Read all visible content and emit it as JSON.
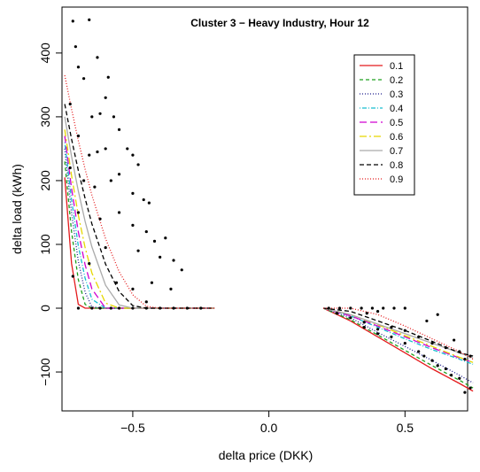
{
  "chart_data": {
    "type": "line",
    "title": "Cluster 3 − Heavy Industry, Hour 12",
    "x_label": "delta price (DKK)",
    "y_label": "delta load (kWh)",
    "xlim": [
      -0.76,
      0.73
    ],
    "ylim": [
      -161,
      472
    ],
    "xticks": [
      {
        "value": -0.5,
        "label": "−0.5"
      },
      {
        "value": 0,
        "label": "0.0"
      },
      0.5
    ],
    "yticks": [
      {
        "value": -100,
        "label": "−100"
      },
      0,
      100,
      200,
      300,
      400
    ],
    "legend": "topright",
    "x": [
      -0.75,
      -0.725,
      -0.7,
      -0.675,
      -0.65,
      -0.6,
      -0.55,
      -0.5,
      -0.45,
      -0.4,
      -0.2,
      null,
      0.2,
      0.3,
      0.4,
      0.5,
      0.6,
      0.7,
      0.75
    ],
    "series": [
      {
        "name": "0.1",
        "color": "#e41a1c",
        "dash": "none",
        "values": [
          205,
          70,
          6,
          0,
          0,
          0,
          0,
          0,
          0,
          0,
          0,
          null,
          0,
          -20,
          -45,
          -70,
          -95,
          -118,
          -130
        ]
      },
      {
        "name": "0.2",
        "color": "#1ea01e",
        "dash": "4 3",
        "values": [
          230,
          120,
          45,
          6,
          0,
          0,
          0,
          0,
          0,
          0,
          0,
          null,
          0,
          -18,
          -42,
          -66,
          -90,
          -113,
          -125
        ]
      },
      {
        "name": "0.3",
        "color": "#1a1a8c",
        "dash": "1 2",
        "values": [
          250,
          149,
          74,
          25,
          2,
          0,
          0,
          0,
          0,
          0,
          0,
          null,
          0,
          -15,
          -38,
          -60,
          -82,
          -105,
          -117
        ]
      },
      {
        "name": "0.4",
        "color": "#17becf",
        "dash": "1 2 5 2",
        "values": [
          260,
          170,
          98,
          47,
          14,
          0,
          0,
          0,
          0,
          0,
          0,
          null,
          0,
          -12,
          -30,
          -48,
          -65,
          -80,
          -88
        ]
      },
      {
        "name": "0.5",
        "color": "#d000d0",
        "dash": "8 4",
        "values": [
          270,
          188,
          120,
          68,
          30,
          0,
          0,
          0,
          0,
          0,
          0,
          null,
          0,
          -12,
          -28,
          -45,
          -62,
          -78,
          -85
        ]
      },
      {
        "name": "0.6",
        "color": "#e6d800",
        "dash": "8 3 2 3",
        "values": [
          280,
          208,
          146,
          95,
          55,
          8,
          0,
          0,
          0,
          0,
          0,
          null,
          0,
          -10,
          -26,
          -43,
          -60,
          -77,
          -85
        ]
      },
      {
        "name": "0.7",
        "color": "#aaaaaa",
        "dash": "none",
        "values": [
          300,
          238,
          184,
          136,
          96,
          36,
          5,
          0,
          0,
          0,
          0,
          null,
          0,
          -10,
          -25,
          -40,
          -55,
          -70,
          -78
        ]
      },
      {
        "name": "0.8",
        "color": "#000000",
        "dash": "5 3",
        "values": [
          320,
          265,
          216,
          172,
          132,
          69,
          26,
          4,
          0,
          0,
          0,
          null,
          0,
          -5,
          -20,
          -35,
          -52,
          -70,
          -75
        ]
      },
      {
        "name": "0.9",
        "color": "#e41a1c",
        "dash": "1 2",
        "values": [
          365,
          312,
          263,
          218,
          177,
          109,
          57,
          21,
          3,
          0,
          0,
          null,
          0,
          0,
          -10,
          -28,
          -48,
          -68,
          -80
        ]
      }
    ],
    "scatter": {
      "color": "#000000",
      "x": [
        -0.72,
        -0.66,
        -0.71,
        -0.63,
        -0.7,
        -0.68,
        -0.59,
        -0.6,
        -0.73,
        -0.65,
        -0.62,
        -0.57,
        -0.55,
        -0.7,
        -0.66,
        -0.63,
        -0.6,
        -0.52,
        -0.5,
        -0.48,
        -0.73,
        -0.68,
        -0.64,
        -0.58,
        -0.55,
        -0.5,
        -0.46,
        -0.44,
        -0.7,
        -0.62,
        -0.55,
        -0.5,
        -0.45,
        -0.42,
        -0.38,
        -0.35,
        -0.32,
        -0.4,
        -0.48,
        -0.6,
        -0.66,
        -0.72,
        -0.56,
        -0.43,
        -0.5,
        -0.36,
        -0.45,
        -0.7,
        -0.65,
        -0.62,
        -0.58,
        -0.55,
        -0.5,
        -0.45,
        -0.4,
        -0.35,
        -0.3,
        -0.25,
        0.22,
        0.26,
        0.3,
        0.34,
        0.38,
        0.42,
        0.46,
        0.5,
        0.36,
        0.4,
        0.25,
        0.3,
        0.35,
        0.4,
        0.45,
        0.5,
        0.55,
        0.6,
        0.65,
        0.7,
        0.74,
        0.72,
        0.67,
        0.62,
        0.57,
        0.5,
        0.55,
        0.6,
        0.65,
        0.7,
        0.74,
        0.45,
        0.62,
        0.58,
        0.68,
        0.72,
        0.35,
        0.4
      ],
      "y": [
        450,
        452,
        410,
        393,
        378,
        360,
        362,
        330,
        320,
        300,
        305,
        300,
        280,
        270,
        240,
        245,
        250,
        250,
        240,
        225,
        220,
        200,
        190,
        200,
        210,
        180,
        170,
        165,
        150,
        140,
        150,
        130,
        120,
        105,
        110,
        75,
        60,
        80,
        90,
        95,
        70,
        50,
        40,
        40,
        30,
        30,
        10,
        0,
        0,
        0,
        0,
        0,
        0,
        0,
        0,
        0,
        0,
        0,
        0,
        0,
        0,
        0,
        0,
        0,
        0,
        0,
        -8,
        -5,
        -8,
        -15,
        -22,
        -33,
        -45,
        -55,
        -68,
        -82,
        -95,
        -110,
        -125,
        -132,
        -105,
        -90,
        -75,
        -35,
        -45,
        -55,
        -62,
        -68,
        -75,
        -30,
        -10,
        -20,
        -50,
        -80,
        -30,
        -40
      ]
    }
  }
}
